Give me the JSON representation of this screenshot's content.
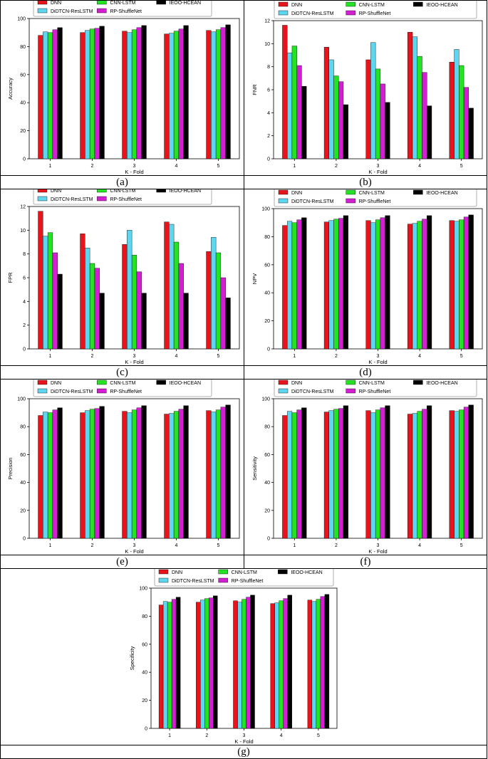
{
  "legend": {
    "entries": [
      "DNN",
      "CNN-LSTM",
      "IEOO-HCEAN",
      "DiDTCN-ResLSTM",
      "RP-ShuffleNet"
    ]
  },
  "colors": {
    "DNN": "#e8141b",
    "DiDTCN-ResLSTM": "#5fd6ef",
    "CNN-LSTM": "#23e323",
    "RP-ShuffleNet": "#d21fd2",
    "IEOO-HCEAN": "#000000"
  },
  "chart_data": [
    {
      "type": "bar",
      "caption": "(a)",
      "xlabel": "K - Fold",
      "ylabel": "Accuracy",
      "ylim": [
        0,
        100
      ],
      "yticks": [
        0,
        20,
        40,
        60,
        80,
        100
      ],
      "categories": [
        "1",
        "2",
        "3",
        "4",
        "5"
      ],
      "series": [
        {
          "name": "DNN",
          "values": [
            88.0,
            90.0,
            91.0,
            89.0,
            91.5
          ]
        },
        {
          "name": "DiDTCN-ResLSTM",
          "values": [
            90.5,
            91.5,
            90.0,
            89.5,
            90.5
          ]
        },
        {
          "name": "CNN-LSTM",
          "values": [
            90.0,
            92.5,
            92.0,
            91.0,
            92.0
          ]
        },
        {
          "name": "RP-ShuffleNet",
          "values": [
            92.0,
            93.0,
            93.5,
            92.5,
            93.5
          ]
        },
        {
          "name": "IEOO-HCEAN",
          "values": [
            93.5,
            94.5,
            95.0,
            95.0,
            95.5
          ]
        }
      ]
    },
    {
      "type": "bar",
      "caption": "(b)",
      "xlabel": "K - Fold",
      "ylabel": "FNR",
      "ylim": [
        0,
        12
      ],
      "yticks": [
        0,
        2,
        4,
        6,
        8,
        10,
        12
      ],
      "categories": [
        "1",
        "2",
        "3",
        "4",
        "5"
      ],
      "series": [
        {
          "name": "DNN",
          "values": [
            11.6,
            9.7,
            8.6,
            11.0,
            8.4
          ]
        },
        {
          "name": "DiDTCN-ResLSTM",
          "values": [
            9.2,
            8.6,
            10.1,
            10.6,
            9.5
          ]
        },
        {
          "name": "CNN-LSTM",
          "values": [
            9.8,
            7.2,
            7.8,
            8.9,
            8.1
          ]
        },
        {
          "name": "RP-ShuffleNet",
          "values": [
            8.1,
            6.7,
            6.5,
            7.5,
            6.2
          ]
        },
        {
          "name": "IEOO-HCEAN",
          "values": [
            6.3,
            4.7,
            4.9,
            4.6,
            4.4
          ]
        }
      ]
    },
    {
      "type": "bar",
      "caption": "(c)",
      "xlabel": "K - Fold",
      "ylabel": "FPR",
      "ylim": [
        0,
        12
      ],
      "yticks": [
        0,
        2,
        4,
        6,
        8,
        10,
        12
      ],
      "categories": [
        "1",
        "2",
        "3",
        "4",
        "5"
      ],
      "series": [
        {
          "name": "DNN",
          "values": [
            11.6,
            9.7,
            8.8,
            10.7,
            8.2
          ]
        },
        {
          "name": "DiDTCN-ResLSTM",
          "values": [
            9.5,
            8.5,
            10.0,
            10.5,
            9.4
          ]
        },
        {
          "name": "CNN-LSTM",
          "values": [
            9.8,
            7.2,
            7.9,
            9.0,
            8.1
          ]
        },
        {
          "name": "RP-ShuffleNet",
          "values": [
            8.1,
            6.8,
            6.5,
            7.2,
            6.0
          ]
        },
        {
          "name": "IEOO-HCEAN",
          "values": [
            6.3,
            4.7,
            4.7,
            4.7,
            4.3
          ]
        }
      ]
    },
    {
      "type": "bar",
      "caption": "(d)",
      "xlabel": "K - Fold",
      "ylabel": "NPV",
      "ylim": [
        0,
        100
      ],
      "yticks": [
        0,
        20,
        40,
        60,
        80,
        100
      ],
      "categories": [
        "1",
        "2",
        "3",
        "4",
        "5"
      ],
      "series": [
        {
          "name": "DNN",
          "values": [
            88.0,
            90.5,
            91.5,
            89.0,
            91.5
          ]
        },
        {
          "name": "DiDTCN-ResLSTM",
          "values": [
            91.0,
            91.5,
            90.0,
            89.5,
            91.0
          ]
        },
        {
          "name": "CNN-LSTM",
          "values": [
            90.0,
            92.5,
            92.0,
            91.0,
            92.0
          ]
        },
        {
          "name": "RP-ShuffleNet",
          "values": [
            92.0,
            93.0,
            93.5,
            92.5,
            94.0
          ]
        },
        {
          "name": "IEOO-HCEAN",
          "values": [
            93.5,
            95.0,
            95.0,
            95.0,
            95.5
          ]
        }
      ]
    },
    {
      "type": "bar",
      "caption": "(e)",
      "xlabel": "K - Fold",
      "ylabel": "Precision",
      "ylim": [
        0,
        100
      ],
      "yticks": [
        0,
        20,
        40,
        60,
        80,
        100
      ],
      "categories": [
        "1",
        "2",
        "3",
        "4",
        "5"
      ],
      "series": [
        {
          "name": "DNN",
          "values": [
            88.0,
            90.0,
            91.0,
            89.0,
            91.5
          ]
        },
        {
          "name": "DiDTCN-ResLSTM",
          "values": [
            90.5,
            91.5,
            90.0,
            89.5,
            90.5
          ]
        },
        {
          "name": "CNN-LSTM",
          "values": [
            90.0,
            92.5,
            92.0,
            91.0,
            92.0
          ]
        },
        {
          "name": "RP-ShuffleNet",
          "values": [
            92.0,
            93.0,
            93.5,
            92.5,
            94.0
          ]
        },
        {
          "name": "IEOO-HCEAN",
          "values": [
            93.5,
            94.5,
            95.0,
            95.0,
            95.5
          ]
        }
      ]
    },
    {
      "type": "bar",
      "caption": "(f)",
      "xlabel": "K - Fold",
      "ylabel": "Sensitivity",
      "ylim": [
        0,
        100
      ],
      "yticks": [
        0,
        20,
        40,
        60,
        80,
        100
      ],
      "categories": [
        "1",
        "2",
        "3",
        "4",
        "5"
      ],
      "series": [
        {
          "name": "DNN",
          "values": [
            88.0,
            90.5,
            91.5,
            89.0,
            91.5
          ]
        },
        {
          "name": "DiDTCN-ResLSTM",
          "values": [
            91.0,
            91.5,
            90.0,
            89.5,
            91.0
          ]
        },
        {
          "name": "CNN-LSTM",
          "values": [
            90.0,
            92.5,
            92.0,
            91.0,
            92.0
          ]
        },
        {
          "name": "RP-ShuffleNet",
          "values": [
            92.0,
            93.0,
            93.5,
            92.5,
            94.0
          ]
        },
        {
          "name": "IEOO-HCEAN",
          "values": [
            93.5,
            95.0,
            95.0,
            95.0,
            95.5
          ]
        }
      ]
    },
    {
      "type": "bar",
      "caption": "(g)",
      "xlabel": "K - Fold",
      "ylabel": "Specificity",
      "ylim": [
        0,
        100
      ],
      "yticks": [
        0,
        20,
        40,
        60,
        80,
        100
      ],
      "categories": [
        "1",
        "2",
        "3",
        "4",
        "5"
      ],
      "series": [
        {
          "name": "DNN",
          "values": [
            88.0,
            90.0,
            91.0,
            89.0,
            91.5
          ]
        },
        {
          "name": "DiDTCN-ResLSTM",
          "values": [
            90.5,
            91.5,
            90.0,
            89.5,
            90.5
          ]
        },
        {
          "name": "CNN-LSTM",
          "values": [
            90.0,
            92.5,
            92.0,
            91.0,
            92.0
          ]
        },
        {
          "name": "RP-ShuffleNet",
          "values": [
            92.0,
            93.0,
            93.5,
            92.5,
            94.0
          ]
        },
        {
          "name": "IEOO-HCEAN",
          "values": [
            93.5,
            94.5,
            95.0,
            95.0,
            95.5
          ]
        }
      ]
    }
  ]
}
